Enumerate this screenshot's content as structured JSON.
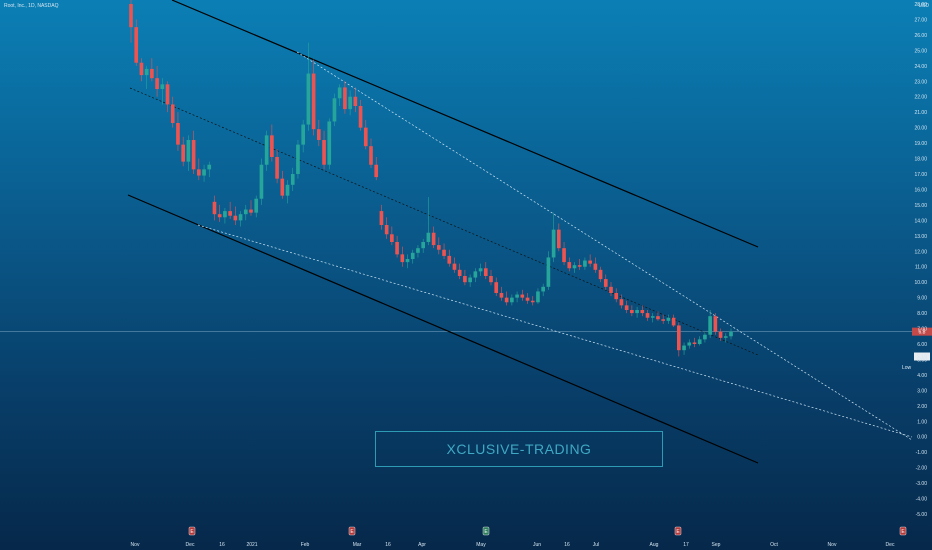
{
  "header": {
    "title": "Root, Inc., 1D, NASDAQ",
    "currency": "USD"
  },
  "watermark": "XCLUSIVE-TRADING",
  "low_label": "Low",
  "price_tag": "6.8",
  "colors": {
    "up": "#26a69a",
    "down": "#ef5350",
    "channel": "#000000",
    "dotted": "#cfe6f5",
    "price_line": "#7fa7c4",
    "watermark": "#3fa8c4"
  },
  "chart_data": {
    "type": "candlestick",
    "y_range": [
      -5.0,
      28.0
    ],
    "y_ticks": [
      "28.00",
      "27.00",
      "26.00",
      "25.00",
      "24.00",
      "23.00",
      "22.00",
      "21.00",
      "20.00",
      "19.00",
      "18.00",
      "17.00",
      "16.00",
      "15.00",
      "14.00",
      "13.00",
      "12.00",
      "11.00",
      "10.00",
      "9.00",
      "8.00",
      "7.00",
      "6.00",
      "5.00",
      "4.00",
      "3.00",
      "2.00",
      "1.00",
      "0.00",
      "-1.00",
      "-2.00",
      "-3.00",
      "-4.00",
      "-5.00"
    ],
    "x_labels": [
      "Nov",
      "Dec",
      "16",
      "2021",
      "Feb",
      "Mar",
      "16",
      "Apr",
      "May",
      "Jun",
      "16",
      "Jul",
      "Aug",
      "17",
      "Sep",
      "Oct",
      "Nov",
      "Dec"
    ],
    "last_price": 6.8,
    "low_value": 5.19,
    "badges": [
      "E",
      "E",
      "E",
      "E",
      "E"
    ],
    "candles": [
      [
        28.0,
        29.0,
        25.5,
        26.5
      ],
      [
        26.5,
        27.0,
        24.0,
        24.2
      ],
      [
        24.2,
        24.5,
        23.0,
        23.4
      ],
      [
        23.4,
        24.0,
        22.5,
        23.8
      ],
      [
        23.8,
        24.5,
        23.0,
        23.2
      ],
      [
        23.2,
        24.0,
        22.0,
        22.5
      ],
      [
        22.5,
        23.2,
        21.5,
        22.8
      ],
      [
        22.8,
        23.0,
        21.0,
        21.5
      ],
      [
        21.5,
        22.0,
        20.0,
        20.3
      ],
      [
        20.3,
        21.0,
        18.5,
        18.9
      ],
      [
        18.9,
        19.4,
        17.5,
        17.8
      ],
      [
        17.8,
        19.5,
        17.2,
        19.2
      ],
      [
        19.2,
        19.8,
        17.0,
        17.3
      ],
      [
        17.3,
        18.0,
        16.6,
        16.9
      ],
      [
        16.9,
        17.6,
        16.5,
        17.3
      ],
      [
        17.3,
        17.8,
        16.8,
        17.6
      ],
      [
        15.2,
        15.6,
        14.0,
        14.4
      ],
      [
        14.4,
        15.0,
        13.9,
        14.2
      ],
      [
        14.2,
        14.8,
        13.8,
        14.6
      ],
      [
        14.6,
        15.2,
        14.1,
        14.3
      ],
      [
        14.3,
        14.9,
        13.7,
        14.0
      ],
      [
        14.0,
        14.6,
        13.6,
        14.4
      ],
      [
        14.4,
        15.0,
        14.0,
        14.7
      ],
      [
        14.7,
        15.3,
        14.3,
        14.5
      ],
      [
        14.5,
        15.6,
        14.2,
        15.4
      ],
      [
        15.4,
        18.0,
        15.0,
        17.6
      ],
      [
        17.6,
        19.8,
        17.2,
        19.5
      ],
      [
        19.5,
        20.2,
        17.8,
        18.1
      ],
      [
        18.1,
        18.6,
        16.4,
        16.7
      ],
      [
        16.7,
        17.2,
        15.4,
        15.6
      ],
      [
        15.6,
        16.6,
        15.1,
        16.3
      ],
      [
        16.3,
        17.4,
        15.9,
        17.0
      ],
      [
        17.0,
        19.2,
        16.7,
        18.9
      ],
      [
        18.9,
        20.5,
        18.4,
        20.2
      ],
      [
        20.2,
        25.5,
        19.8,
        23.5
      ],
      [
        23.5,
        24.4,
        19.5,
        19.9
      ],
      [
        19.9,
        20.5,
        18.8,
        19.2
      ],
      [
        19.2,
        19.8,
        17.3,
        17.6
      ],
      [
        17.6,
        20.6,
        17.3,
        20.4
      ],
      [
        20.4,
        22.2,
        20.1,
        21.9
      ],
      [
        21.9,
        22.8,
        21.4,
        22.6
      ],
      [
        22.6,
        23.0,
        20.9,
        21.2
      ],
      [
        21.2,
        22.4,
        20.8,
        22.0
      ],
      [
        22.0,
        22.6,
        21.0,
        21.4
      ],
      [
        21.4,
        21.8,
        19.8,
        20.0
      ],
      [
        20.0,
        20.5,
        18.6,
        18.8
      ],
      [
        18.8,
        19.3,
        17.4,
        17.6
      ],
      [
        17.6,
        18.1,
        16.6,
        16.8
      ],
      [
        14.6,
        15.0,
        13.4,
        13.7
      ],
      [
        13.7,
        14.2,
        12.8,
        13.1
      ],
      [
        13.1,
        13.6,
        12.4,
        12.6
      ],
      [
        12.6,
        13.0,
        11.6,
        11.8
      ],
      [
        11.8,
        12.3,
        11.0,
        11.3
      ],
      [
        11.3,
        11.8,
        10.9,
        11.5
      ],
      [
        11.5,
        12.1,
        11.2,
        11.9
      ],
      [
        11.9,
        12.4,
        11.6,
        12.2
      ],
      [
        12.2,
        12.8,
        11.9,
        12.6
      ],
      [
        12.6,
        15.5,
        12.4,
        13.2
      ],
      [
        13.2,
        13.6,
        12.2,
        12.4
      ],
      [
        12.4,
        12.9,
        11.8,
        12.1
      ],
      [
        12.1,
        12.5,
        11.5,
        11.7
      ],
      [
        11.7,
        12.1,
        11.0,
        11.2
      ],
      [
        11.2,
        11.6,
        10.6,
        10.8
      ],
      [
        10.8,
        11.2,
        10.2,
        10.4
      ],
      [
        10.4,
        10.8,
        9.8,
        10.0
      ],
      [
        10.0,
        10.5,
        9.7,
        10.3
      ],
      [
        10.3,
        10.9,
        10.0,
        10.7
      ],
      [
        10.7,
        11.2,
        10.4,
        10.9
      ],
      [
        10.9,
        11.3,
        10.2,
        10.4
      ],
      [
        10.4,
        10.8,
        9.8,
        10.0
      ],
      [
        10.0,
        10.3,
        9.1,
        9.3
      ],
      [
        9.3,
        9.7,
        8.8,
        9.0
      ],
      [
        9.0,
        9.4,
        8.5,
        8.7
      ],
      [
        8.7,
        9.2,
        8.5,
        9.0
      ],
      [
        9.0,
        9.4,
        8.7,
        9.2
      ],
      [
        9.2,
        9.5,
        8.8,
        9.0
      ],
      [
        9.0,
        9.3,
        8.6,
        8.8
      ],
      [
        8.8,
        9.1,
        8.5,
        8.7
      ],
      [
        8.7,
        9.6,
        8.6,
        9.4
      ],
      [
        9.4,
        9.9,
        9.1,
        9.7
      ],
      [
        9.7,
        12.0,
        9.5,
        11.6
      ],
      [
        11.6,
        14.5,
        11.3,
        13.4
      ],
      [
        13.4,
        13.8,
        12.0,
        12.2
      ],
      [
        12.2,
        12.6,
        11.1,
        11.3
      ],
      [
        11.3,
        11.6,
        10.7,
        10.9
      ],
      [
        10.9,
        11.3,
        10.6,
        11.1
      ],
      [
        11.1,
        11.5,
        10.8,
        11.0
      ],
      [
        11.0,
        11.6,
        10.8,
        11.4
      ],
      [
        11.4,
        11.8,
        11.0,
        11.2
      ],
      [
        11.2,
        11.6,
        10.6,
        10.8
      ],
      [
        10.8,
        11.0,
        10.0,
        10.2
      ],
      [
        10.2,
        10.5,
        9.5,
        9.7
      ],
      [
        9.7,
        10.0,
        9.1,
        9.3
      ],
      [
        9.3,
        9.6,
        8.7,
        8.9
      ],
      [
        8.9,
        9.2,
        8.3,
        8.5
      ],
      [
        8.5,
        8.8,
        8.0,
        8.2
      ],
      [
        8.2,
        8.5,
        7.8,
        8.0
      ],
      [
        8.0,
        8.4,
        7.7,
        8.2
      ],
      [
        8.2,
        8.5,
        7.8,
        8.0
      ],
      [
        8.0,
        8.2,
        7.5,
        7.7
      ],
      [
        7.7,
        8.0,
        7.4,
        7.8
      ],
      [
        7.8,
        8.1,
        7.5,
        7.6
      ],
      [
        7.6,
        7.9,
        7.3,
        7.5
      ],
      [
        7.5,
        7.9,
        7.3,
        7.7
      ],
      [
        7.7,
        7.9,
        7.1,
        7.2
      ],
      [
        7.2,
        7.4,
        5.2,
        5.6
      ],
      [
        5.6,
        6.1,
        5.3,
        5.9
      ],
      [
        5.9,
        6.3,
        5.7,
        6.1
      ],
      [
        6.1,
        6.4,
        5.8,
        6.0
      ],
      [
        6.0,
        6.5,
        5.9,
        6.3
      ],
      [
        6.3,
        6.8,
        6.1,
        6.6
      ],
      [
        6.6,
        8.2,
        6.4,
        7.8
      ],
      [
        7.8,
        8.0,
        6.6,
        6.8
      ],
      [
        6.8,
        7.0,
        6.2,
        6.4
      ],
      [
        6.4,
        6.7,
        6.1,
        6.5
      ],
      [
        6.5,
        7.0,
        6.3,
        6.8
      ]
    ]
  }
}
